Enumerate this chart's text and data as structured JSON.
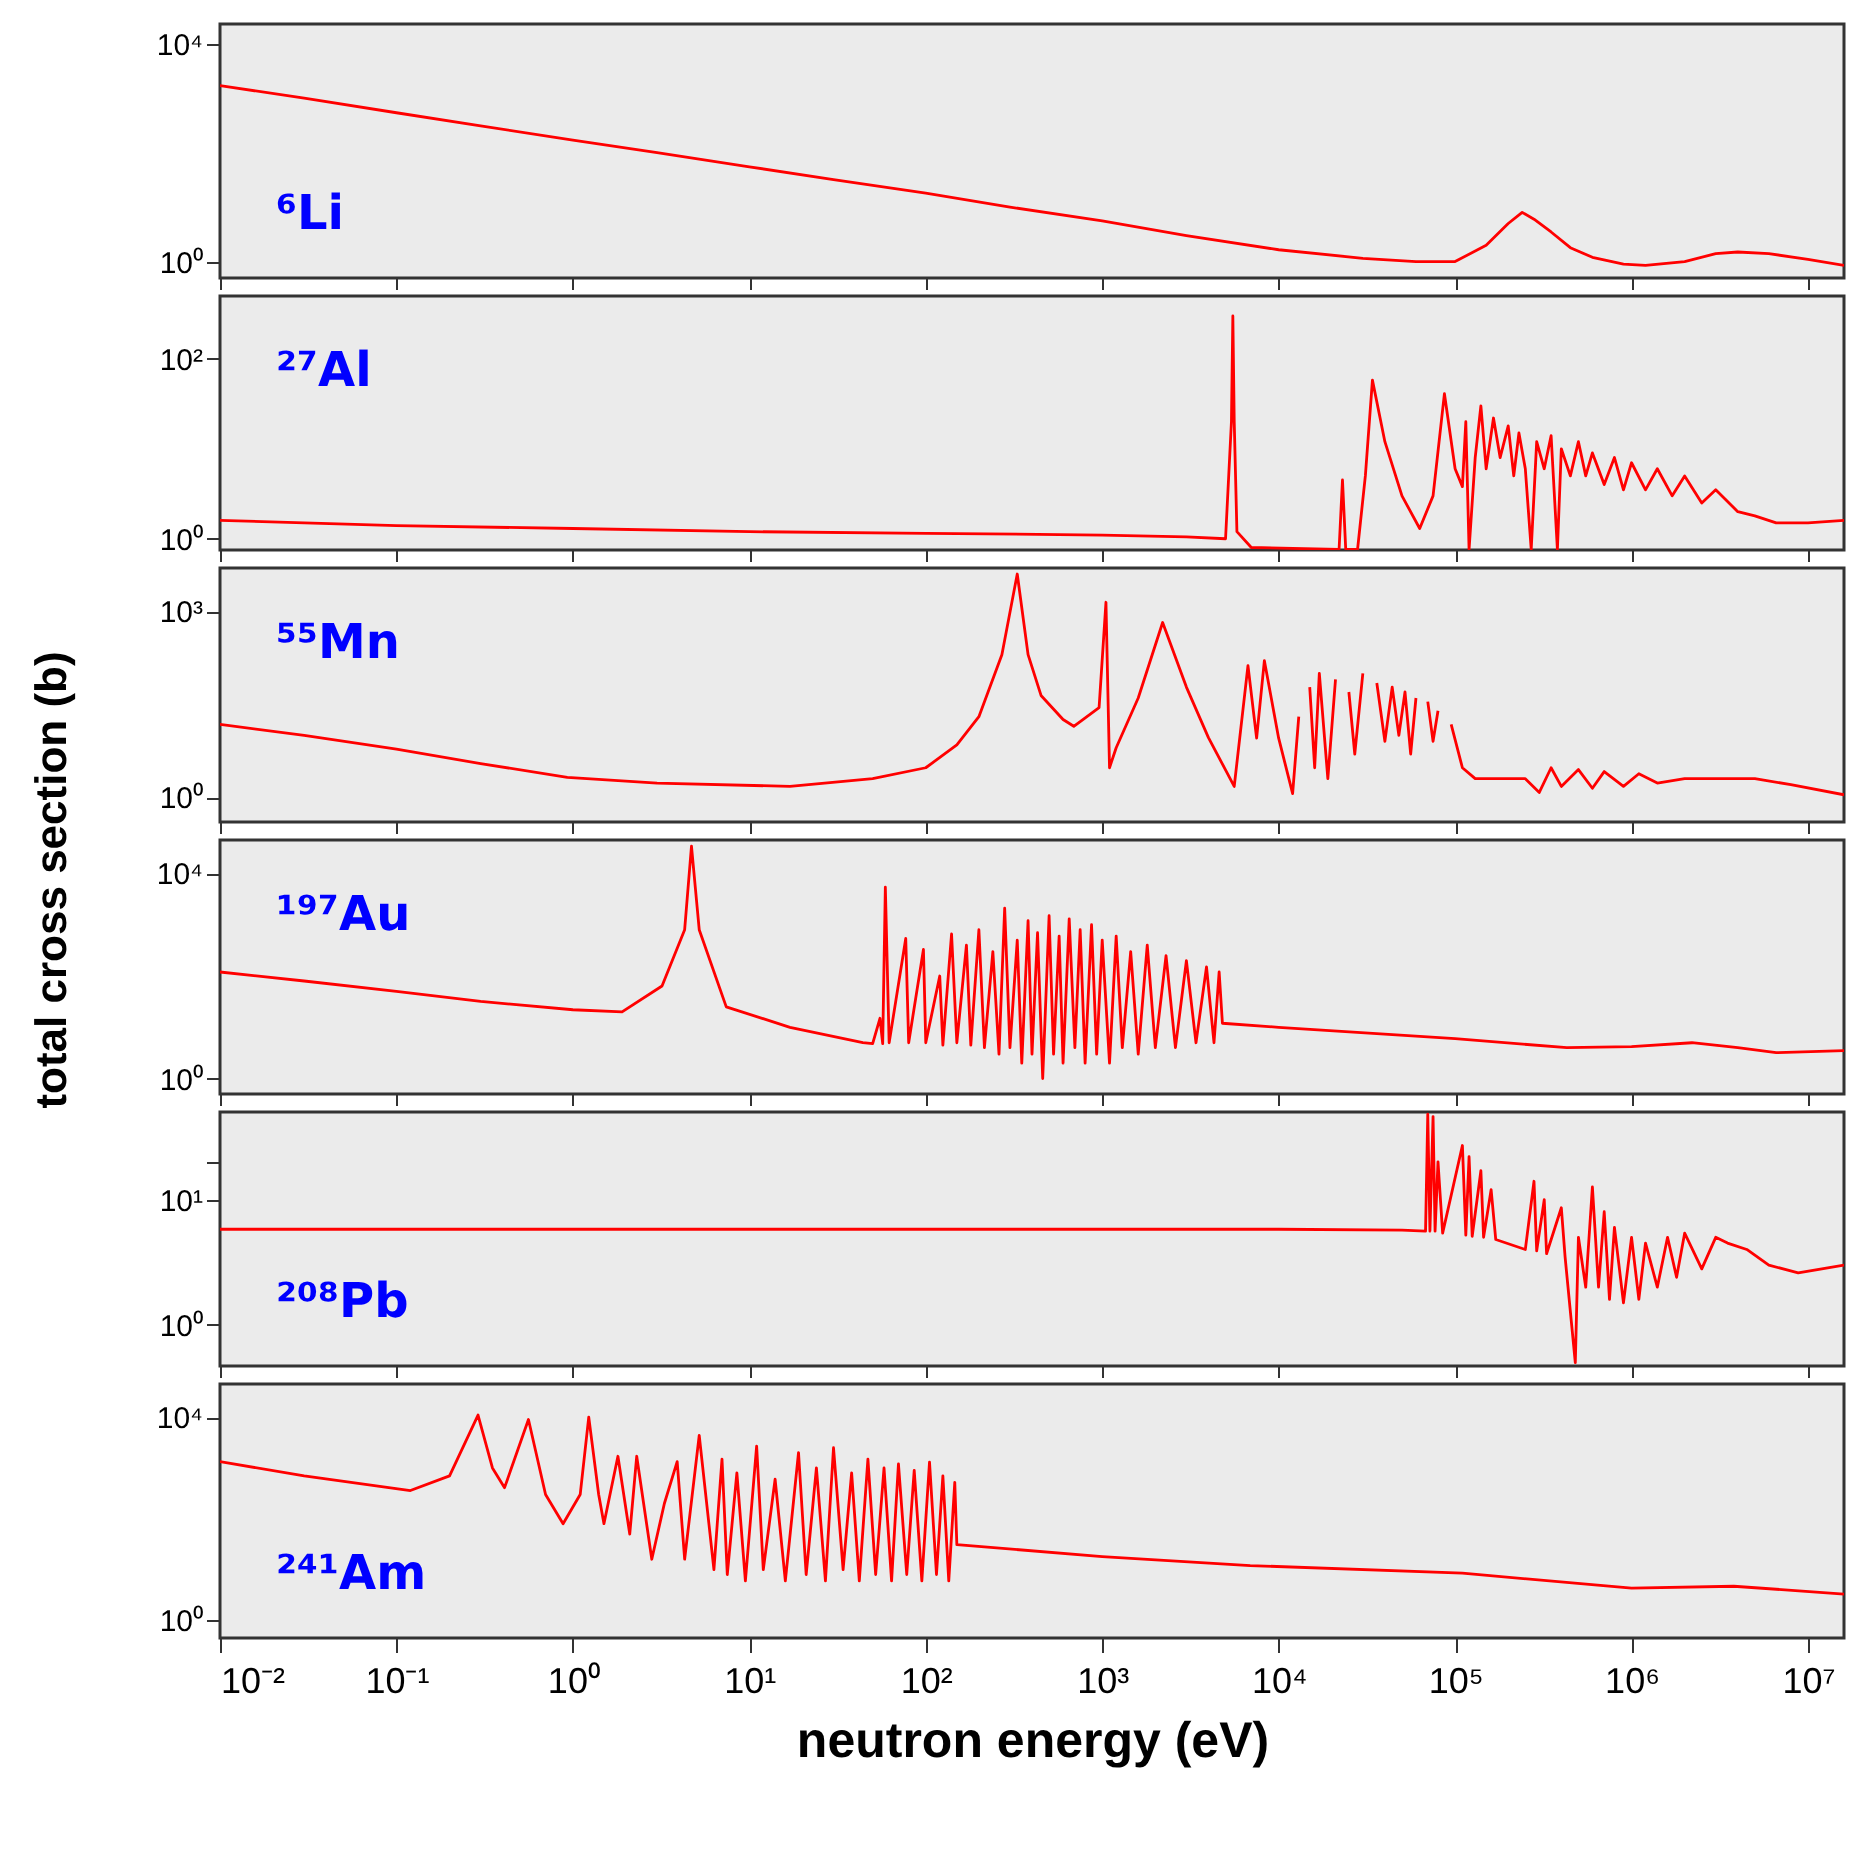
{
  "chart_data": [
    {
      "type": "line",
      "log": "xy",
      "tick_labels": "y",
      "annotations": [
        "⁶Li"
      ],
      "xlim": [
        0.01,
        16000000
      ],
      "ylim": [
        0.5,
        23000
      ],
      "xticks": [
        {
          "value": 0.01,
          "label": null
        },
        {
          "value": 0.1,
          "label": null
        },
        {
          "value": 1,
          "label": null
        },
        {
          "value": 10,
          "label": null
        },
        {
          "value": 100,
          "label": null
        },
        {
          "value": 1000,
          "label": null
        },
        {
          "value": 10000,
          "label": null
        },
        {
          "value": 100000,
          "label": null
        },
        {
          "value": 1000000,
          "label": null
        },
        {
          "value": 10000000,
          "label": null
        }
      ],
      "yticks": [
        {
          "value": 1,
          "label": "10⁰"
        },
        {
          "value": 10000,
          "label": "10⁴"
        }
      ],
      "x": [
        0.01,
        0.03,
        0.1,
        0.3,
        1,
        3,
        10,
        30,
        100,
        300,
        1000,
        3000,
        10000,
        30000,
        60000,
        100000,
        150000,
        200000,
        240000,
        280000,
        350000,
        450000,
        600000,
        900000,
        1200000,
        2000000,
        3000000,
        4000000,
        6000000,
        10000000,
        16000000
      ],
      "series": [
        {
          "color": "#ff0000",
          "values": [
            1700,
            1000,
            540,
            310,
            170,
            100,
            55,
            32,
            18,
            10,
            5.6,
            3,
            1.65,
            1.15,
            1.0,
            1.0,
            2,
            5,
            8,
            6,
            3.5,
            1.8,
            1.2,
            0.9,
            0.85,
            1.0,
            1.4,
            1.5,
            1.4,
            1.1,
            0.85
          ]
        }
      ]
    },
    {
      "type": "line",
      "log": "xy",
      "tick_labels": "y",
      "annotations": [
        "²⁷Al"
      ],
      "xlim": [
        0.01,
        16000000
      ],
      "ylim": [
        0.75,
        500
      ],
      "xticks": [
        {
          "value": 0.01,
          "label": null
        },
        {
          "value": 0.1,
          "label": null
        },
        {
          "value": 1,
          "label": null
        },
        {
          "value": 10,
          "label": null
        },
        {
          "value": 100,
          "label": null
        },
        {
          "value": 1000,
          "label": null
        },
        {
          "value": 10000,
          "label": null
        },
        {
          "value": 100000,
          "label": null
        },
        {
          "value": 1000000,
          "label": null
        },
        {
          "value": 10000000,
          "label": null
        }
      ],
      "yticks": [
        {
          "value": 1,
          "label": "10⁰"
        },
        {
          "value": 100,
          "label": "10²"
        }
      ],
      "x": [
        0.01,
        0.1,
        1,
        10,
        100,
        1000,
        3000,
        5000,
        5400,
        5500,
        5600,
        5800,
        7000,
        22000,
        23000,
        24000,
        28000,
        31000,
        34000,
        40000,
        50000,
        63000,
        75000,
        87000,
        100000,
        110000,
        115000,
        120000,
        130000,
        140000,
        150000,
        165000,
        180000,
        200000,
        215000,
        230000,
        250000,
        270000,
        290000,
        320000,
        350000,
        380000,
        400000,
        450000,
        500000,
        550000,
        600000,
        700000,
        800000,
        900000,
        1000000,
        1200000,
        1400000,
        1700000,
        2000000,
        2500000,
        3000000,
        4000000,
        5000000,
        6600000,
        10000000,
        16000000
      ],
      "series": [
        {
          "color": "#ff0000",
          "values": [
            1.6,
            1.4,
            1.3,
            1.2,
            1.15,
            1.1,
            1.05,
            1.0,
            20,
            300,
            20,
            1.2,
            0.8,
            0.76,
            4.5,
            0.76,
            0.76,
            5,
            58,
            12,
            3,
            1.3,
            3,
            41,
            6,
            3.8,
            20,
            0.76,
            8,
            30,
            6,
            22,
            8,
            18,
            5,
            15,
            6,
            0.76,
            12,
            6,
            14,
            0.76,
            10,
            5,
            12,
            5,
            9,
            4,
            8,
            3.5,
            7,
            3.5,
            6,
            3,
            5,
            2.5,
            3.5,
            2,
            1.8,
            1.5,
            1.5,
            1.6
          ]
        }
      ]
    },
    {
      "type": "line",
      "log": "xy",
      "tick_labels": "y",
      "ylabel": "total cross section (b)",
      "annotations": [
        "⁵⁵Mn"
      ],
      "xlim": [
        0.01,
        16000000
      ],
      "ylim": [
        0.4,
        5000
      ],
      "xticks": [
        {
          "value": 0.01,
          "label": null
        },
        {
          "value": 0.1,
          "label": null
        },
        {
          "value": 1,
          "label": null
        },
        {
          "value": 10,
          "label": null
        },
        {
          "value": 100,
          "label": null
        },
        {
          "value": 1000,
          "label": null
        },
        {
          "value": 10000,
          "label": null
        },
        {
          "value": 100000,
          "label": null
        },
        {
          "value": 1000000,
          "label": null
        },
        {
          "value": 10000000,
          "label": null
        }
      ],
      "yticks": [
        {
          "value": 1,
          "label": "10⁰"
        },
        {
          "value": 1000,
          "label": "10³"
        }
      ],
      "x": [
        0.01,
        0.03,
        0.1,
        0.3,
        0.93,
        3,
        17,
        50,
        100,
        150,
        200,
        270,
        330,
        380,
        450,
        600,
        690,
        960,
        1050,
        1100,
        1200,
        1600,
        2200,
        3000,
        4000,
        5600,
        6700,
        7500,
        8300,
        10000,
        12000,
        13000,
        14000,
        15000,
        16000,
        17000,
        19000,
        21000,
        23000,
        25000,
        27000,
        30000,
        33000,
        36000,
        40000,
        44000,
        48000,
        52000,
        56000,
        60000,
        65000,
        70000,
        75000,
        80000,
        90000,
        95000,
        110000,
        130000,
        190000,
        250000,
        300000,
        350000,
        400000,
        500000,
        600000,
        700000,
        900000,
        1100000,
        1400000,
        2000000,
        3000000,
        5000000,
        8000000,
        16000000
      ],
      "series": [
        {
          "color": "#ff0000",
          "values": [
            15,
            10,
            6,
            3.5,
            2.1,
            1.7,
            1.5,
            2,
            3,
            7,
            20,
            200,
            4000,
            200,
            44,
            18,
            14,
            28,
            1400,
            3,
            6.3,
            40,
            660,
            60,
            9.2,
            1.5,
            133,
            9,
            160,
            9,
            1.15,
            20,
            null,
            60,
            3,
            100,
            2,
            80,
            null,
            50,
            5,
            100,
            null,
            70,
            8,
            60,
            10,
            50,
            5,
            40,
            null,
            35,
            8,
            25,
            null,
            15,
            3,
            2,
            2,
            2,
            1.2,
            3,
            1.5,
            2.8,
            1.4,
            2.6,
            1.5,
            2.4,
            1.7,
            2,
            2,
            2,
            1.6,
            1.1
          ]
        }
      ]
    },
    {
      "type": "line",
      "log": "xy",
      "tick_labels": "y",
      "annotations": [
        "¹⁹⁷Au"
      ],
      "xlim": [
        0.01,
        16000000
      ],
      "ylim": [
        0.5,
        45000
      ],
      "xticks": [
        {
          "value": 0.01,
          "label": null
        },
        {
          "value": 0.1,
          "label": null
        },
        {
          "value": 1,
          "label": null
        },
        {
          "value": 10,
          "label": null
        },
        {
          "value": 100,
          "label": null
        },
        {
          "value": 1000,
          "label": null
        },
        {
          "value": 10000,
          "label": null
        },
        {
          "value": 100000,
          "label": null
        },
        {
          "value": 1000000,
          "label": null
        },
        {
          "value": 10000000,
          "label": null
        }
      ],
      "yticks": [
        {
          "value": 1,
          "label": "10⁰"
        },
        {
          "value": 10000,
          "label": "10⁴"
        }
      ],
      "x": [
        0.01,
        0.03,
        0.1,
        0.3,
        1,
        1.9,
        3.2,
        4.3,
        4.7,
        5.2,
        7.4,
        17,
        44,
        50,
        55,
        57,
        59,
        62,
        77,
        80,
        97,
        100,
        120,
        125,
        140,
        150,
        170,
        180,
        200,
        215,
        240,
        260,
        280,
        300,
        330,
        350,
        380,
        400,
        430,
        460,
        500,
        530,
        570,
        600,
        650,
        700,
        750,
        800,
        870,
        930,
        1000,
        1100,
        1200,
        1300,
        1450,
        1600,
        1800,
        2000,
        2300,
        2600,
        3000,
        3400,
        3900,
        4300,
        4600,
        4800,
        10000,
        100000,
        430000,
        1000000,
        2200000,
        4000000,
        6600000,
        16000000
      ],
      "series": [
        {
          "color": "#ff0000",
          "values": [
            120,
            80,
            50,
            32,
            22,
            20,
            64,
            800,
            34000,
            800,
            25,
            10,
            5,
            4.8,
            15,
            4.8,
            5400,
            5,
            540,
            5,
            330,
            5,
            100,
            4.5,
            660,
            5,
            400,
            4.5,
            800,
            4,
            300,
            3,
            2100,
            4,
            500,
            2,
            1200,
            3,
            700,
            1,
            1500,
            3,
            600,
            2,
            1300,
            4,
            800,
            2,
            1000,
            3,
            500,
            2,
            600,
            4,
            300,
            3,
            400,
            4,
            250,
            4,
            200,
            5,
            150,
            5,
            120,
            12,
            10,
            6,
            4,
            4.2,
            5,
            4,
            3.2,
            3.5
          ]
        }
      ]
    },
    {
      "type": "line",
      "log": "xy",
      "tick_labels": "y",
      "annotations": [
        "²⁰⁸Pb"
      ],
      "xlim": [
        0.01,
        16000000
      ],
      "ylim": [
        0.47,
        50
      ],
      "xticks": [
        {
          "value": 0.01,
          "label": null
        },
        {
          "value": 0.1,
          "label": null
        },
        {
          "value": 1,
          "label": null
        },
        {
          "value": 10,
          "label": null
        },
        {
          "value": 100,
          "label": null
        },
        {
          "value": 1000,
          "label": null
        },
        {
          "value": 10000,
          "label": null
        },
        {
          "value": 100000,
          "label": null
        },
        {
          "value": 1000000,
          "label": null
        },
        {
          "value": 10000000,
          "label": null
        }
      ],
      "yticks": [
        {
          "value": 1,
          "label": "10⁰"
        },
        {
          "value": 10,
          "label": "10¹"
        },
        {
          "value": 20,
          "label": null
        }
      ],
      "x": [
        0.01,
        1,
        100,
        10000,
        50000,
        68000,
        70000,
        72000,
        75000,
        77000,
        80000,
        85000,
        110000,
        115000,
        120000,
        125000,
        140000,
        145000,
        160000,
        170000,
        250000,
        280000,
        290000,
        320000,
        330000,
        400000,
        420000,
        480000,
        500000,
        550000,
        600000,
        650000,
        700000,
        750000,
        800000,
        900000,
        1000000,
        1100000,
        1200000,
        1400000,
        1600000,
        1800000,
        2000000,
        2500000,
        3000000,
        3500000,
        4500000,
        6000000,
        8800000,
        16000000
      ],
      "series": [
        {
          "color": "#ff0000",
          "values": [
            5.8,
            5.8,
            5.8,
            5.8,
            5.7,
            5.6,
            48,
            5.6,
            46,
            5.6,
            20,
            5.4,
            27,
            5.2,
            22,
            5.1,
            17,
            5,
            12,
            4.8,
            4,
            14,
            3.9,
            10,
            3.7,
            8.6,
            3.5,
            0.5,
            5,
            2,
            12.6,
            2,
            8,
            1.6,
            6,
            1.5,
            5,
            1.6,
            4.5,
            2,
            5,
            2.4,
            5.4,
            2.8,
            5,
            4.5,
            4,
            3,
            2.6,
            3
          ]
        }
      ]
    },
    {
      "type": "line",
      "log": "xy",
      "xlabel": "neutron energy (eV)",
      "annotations": [
        "²⁴¹Am"
      ],
      "xlim": [
        0.01,
        16000000
      ],
      "ylim": [
        0.45,
        45000
      ],
      "xticks": [
        {
          "value": 0.01,
          "label": "10⁻²"
        },
        {
          "value": 0.1,
          "label": "10⁻¹"
        },
        {
          "value": 1,
          "label": "10⁰"
        },
        {
          "value": 10,
          "label": "10¹"
        },
        {
          "value": 100,
          "label": "10²"
        },
        {
          "value": 1000,
          "label": "10³"
        },
        {
          "value": 10000,
          "label": "10⁴"
        },
        {
          "value": 100000,
          "label": "10⁵"
        },
        {
          "value": 1000000,
          "label": "10⁶"
        },
        {
          "value": 10000000,
          "label": "10⁷"
        }
      ],
      "yticks": [
        {
          "value": 1,
          "label": "10⁰"
        },
        {
          "value": 10000,
          "label": "10⁴"
        }
      ],
      "x": [
        0.01,
        0.03,
        0.12,
        0.2,
        0.29,
        0.35,
        0.41,
        0.56,
        0.7,
        0.88,
        1.1,
        1.23,
        1.4,
        1.5,
        1.8,
        2.1,
        2.3,
        2.8,
        3.3,
        3.9,
        4.3,
        5.2,
        6.3,
        7,
        7.5,
        8.5,
        9.5,
        11,
        12,
        14,
        16,
        19,
        21,
        24,
        27,
        30,
        34,
        38,
        42,
        47,
        52,
        58,
        64,
        70,
        78,
        86,
        95,
        105,
        115,
        125,
        135,
        146,
        150,
        1000,
        6900,
        110000,
        1000000,
        3800000,
        16000000
      ],
      "series": [
        {
          "color": "#ff0000",
          "values": [
            1330,
            700,
            360,
            700,
            11000,
            1000,
            410,
            9000,
            300,
            80,
            300,
            10000,
            300,
            80,
            1700,
            50,
            1700,
            16,
            200,
            1330,
            16,
            4400,
            10,
            1500,
            8,
            800,
            6,
            2700,
            10,
            600,
            6,
            2000,
            8,
            1000,
            6,
            2500,
            10,
            800,
            6,
            1500,
            8,
            1000,
            6,
            1200,
            8,
            900,
            6,
            1300,
            8,
            700,
            6,
            520,
            31,
            18,
            12,
            8.5,
            4.3,
            4.7,
            3.3
          ]
        }
      ]
    }
  ]
}
